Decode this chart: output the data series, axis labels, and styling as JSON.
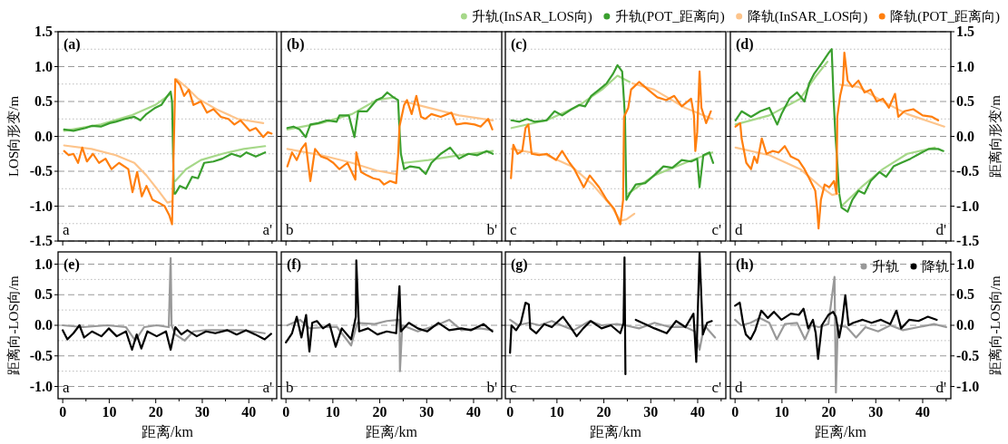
{
  "chart_data": [
    {
      "type": "line",
      "title": "(a)",
      "ylabel": "LOS向形变/m",
      "tick_labels": "y",
      "grid": "y",
      "line_style": "solid",
      "xlim": [
        -1,
        46
      ],
      "xticks": [
        0,
        {
          "value": 5,
          "label": null
        },
        10,
        {
          "value": 15,
          "label": null
        },
        20,
        {
          "value": 25,
          "label": null
        },
        30,
        {
          "value": 35,
          "label": null
        },
        40,
        {
          "value": 45,
          "label": null
        }
      ],
      "ylim": [
        -1.5,
        1.5
      ],
      "yticks": [
        {
          "value": 1.5,
          "label": "1.5"
        },
        {
          "value": 1,
          "label": "1.0"
        },
        {
          "value": 0.5,
          "label": "0.5"
        },
        {
          "value": 0,
          "label": "0.0"
        },
        {
          "value": -0.5,
          "label": "-0.5"
        },
        {
          "value": -1,
          "label": "-1.0"
        },
        {
          "value": -1.5,
          "label": "-1.5"
        }
      ],
      "annotations": [
        "a",
        "a'"
      ],
      "series": [
        {
          "color": "#a6d889",
          "x": [
            0.3,
            8.2,
            14.7,
            19.9,
            23.2
          ],
          "values": [
            0.08,
            0.17,
            0.3,
            0.45,
            0.61
          ]
        },
        {
          "color": "#a6d889",
          "x": [
            24.2,
            26.5,
            29.7,
            34.3,
            38.9,
            43.5
          ],
          "values": [
            -0.64,
            -0.47,
            -0.34,
            -0.25,
            -0.18,
            -0.14
          ]
        },
        {
          "color": "#3a9f2e",
          "x": [
            0.3,
            2.3,
            4.9,
            6.2,
            8.2,
            10.1,
            11.4,
            13.4,
            15.4,
            16.7,
            18,
            19.9,
            21.2,
            22.5,
            23.2,
            23.5,
            23.7,
            23.9,
            24.2,
            25.2,
            26.5,
            27.8,
            29.1,
            30.4,
            32.4,
            34.3,
            36.3,
            38.2,
            39.5,
            41.5,
            43.5
          ],
          "values": [
            0.1,
            0.08,
            0.12,
            0.15,
            0.14,
            0.19,
            0.21,
            0.25,
            0.28,
            0.23,
            0.32,
            0.41,
            0.45,
            0.58,
            0.64,
            0.5,
            -0.16,
            -0.82,
            -0.82,
            -0.71,
            -0.75,
            -0.58,
            -0.6,
            -0.38,
            -0.36,
            -0.32,
            -0.25,
            -0.29,
            -0.23,
            -0.29,
            -0.23
          ]
        },
        {
          "color": "#fdc48b",
          "x": [
            0.3,
            6.2,
            11.4,
            15.4,
            18,
            20.6,
            22.5,
            23.5
          ],
          "values": [
            -0.13,
            -0.18,
            -0.27,
            -0.38,
            -0.56,
            -0.78,
            -0.95,
            -0.93
          ]
        },
        {
          "color": "#fdc48b",
          "x": [
            24.5,
            26.5,
            29.1,
            33,
            37.6,
            43.1
          ],
          "values": [
            0.82,
            0.71,
            0.54,
            0.39,
            0.25,
            0.19
          ]
        },
        {
          "color": "#ff7f0e",
          "x": [
            0.3,
            1.3,
            2.3,
            3.3,
            4.2,
            5.2,
            6.5,
            7.8,
            9.2,
            10.5,
            12.1,
            14.1,
            15,
            16,
            17,
            18,
            19.3,
            20.6,
            21.9,
            22.9,
            23.5,
            24.2,
            25.2,
            26.1,
            27.1,
            28.1,
            29.7,
            31,
            32.4,
            34,
            35.6,
            36.9,
            38.2,
            40.2,
            41.5,
            43.1,
            44.1,
            44.9
          ],
          "values": [
            -0.21,
            -0.27,
            -0.25,
            -0.38,
            -0.16,
            -0.36,
            -0.25,
            -0.38,
            -0.32,
            -0.47,
            -0.38,
            -0.47,
            -0.8,
            -0.51,
            -0.86,
            -0.71,
            -0.91,
            -0.95,
            -1.0,
            -1.13,
            -1.26,
            0.82,
            0.74,
            0.58,
            0.67,
            0.45,
            0.5,
            0.34,
            0.39,
            0.28,
            0.25,
            0.17,
            0.23,
            0.08,
            0.12,
            -0.01,
            0.06,
            0.04
          ]
        }
      ]
    },
    {
      "type": "line",
      "title": "(b)",
      "tick_labels": false,
      "grid": "y",
      "line_style": "solid",
      "xlim": [
        -1,
        46
      ],
      "xticks": [
        0,
        {
          "value": 5,
          "label": null
        },
        10,
        {
          "value": 15,
          "label": null
        },
        20,
        {
          "value": 25,
          "label": null
        },
        30,
        {
          "value": 35,
          "label": null
        },
        40,
        {
          "value": 45,
          "label": null
        }
      ],
      "ylim": [
        -1.5,
        1.5
      ],
      "yticks": [
        1.5,
        1,
        0.5,
        0,
        -0.5,
        -1,
        -1.5
      ],
      "annotations": [
        "b",
        "b'"
      ],
      "series": [
        {
          "color": "#a6d889",
          "x": [
            0.3,
            7.5,
            14.1,
            19.3,
            23.2
          ],
          "values": [
            0.1,
            0.19,
            0.32,
            0.52,
            0.56
          ]
        },
        {
          "color": "#a6d889",
          "x": [
            25.2,
            30.4,
            36.9,
            44.1
          ],
          "values": [
            -0.38,
            -0.34,
            -0.27,
            -0.21
          ]
        },
        {
          "color": "#3a9f2e",
          "x": [
            0.3,
            1.6,
            2.9,
            4.2,
            5.2,
            6.9,
            8.8,
            10.8,
            11.4,
            13.4,
            14.6,
            15.4,
            17.3,
            19.3,
            20.6,
            21.6,
            22.9,
            23.9,
            24.2,
            24.5,
            25.2,
            26.5,
            28.4,
            29.8,
            31,
            33,
            35,
            36.9,
            38.9,
            40.8,
            42.8,
            44.1
          ],
          "values": [
            0.12,
            0.14,
            0.1,
            -0.01,
            0.17,
            0.19,
            0.23,
            0.21,
            0.3,
            0.3,
            -0.01,
            0.36,
            0.36,
            0.52,
            0.56,
            0.63,
            0.56,
            0.52,
            0.1,
            -0.25,
            -0.47,
            -0.43,
            -0.45,
            -0.54,
            -0.38,
            -0.25,
            -0.16,
            -0.32,
            -0.25,
            -0.27,
            -0.21,
            -0.25
          ]
        },
        {
          "color": "#fdc48b",
          "x": [
            0.3,
            7.5,
            14.1,
            19.3,
            23.5
          ],
          "values": [
            -0.18,
            -0.27,
            -0.38,
            -0.49,
            -0.54
          ]
        },
        {
          "color": "#fdc48b",
          "x": [
            25.2,
            30.4,
            36.9,
            44.1
          ],
          "values": [
            0.5,
            0.41,
            0.3,
            0.23
          ]
        },
        {
          "color": "#ff7f0e",
          "x": [
            0.3,
            1.3,
            2.3,
            3.3,
            4.2,
            5.2,
            6.2,
            7.5,
            8.8,
            10.1,
            11.4,
            13.1,
            14.8,
            15,
            16,
            17.3,
            18.6,
            19.9,
            20.9,
            22.2,
            23.5,
            23.9,
            24.2,
            25.2,
            25.8,
            26.8,
            27.8,
            28.8,
            29.7,
            31,
            33,
            35.3,
            36.3,
            38.2,
            40.2,
            41.5,
            43.1,
            44
          ],
          "values": [
            -0.43,
            -0.23,
            -0.34,
            -0.18,
            -0.1,
            -0.64,
            -0.18,
            -0.29,
            -0.32,
            -0.38,
            -0.47,
            -0.38,
            -0.62,
            -0.23,
            -0.51,
            -0.56,
            -0.6,
            -0.62,
            -0.69,
            -0.64,
            -0.67,
            -0.29,
            0.14,
            0.45,
            0.52,
            0.32,
            0.58,
            0.28,
            0.25,
            0.32,
            0.28,
            0.34,
            0.17,
            0.19,
            0.17,
            0.14,
            0.25,
            0.1
          ]
        }
      ]
    },
    {
      "type": "line",
      "title": "(c)",
      "tick_labels": false,
      "grid": "y",
      "line_style": "solid",
      "xlim": [
        -1,
        46
      ],
      "xticks": [
        0,
        {
          "value": 5,
          "label": null
        },
        10,
        {
          "value": 15,
          "label": null
        },
        20,
        {
          "value": 25,
          "label": null
        },
        30,
        {
          "value": 35,
          "label": null
        },
        40,
        {
          "value": 45,
          "label": null
        }
      ],
      "ylim": [
        -1.5,
        1.5
      ],
      "yticks": [
        1.5,
        1,
        0.5,
        0,
        -0.5,
        -1,
        -1.5
      ],
      "annotations": [
        "c",
        "c'"
      ],
      "series": [
        {
          "color": "#a6d889",
          "x": [
            0.3,
            7.8,
            14.4,
            19.6,
            22.9,
            25.5
          ],
          "values": [
            0.12,
            0.23,
            0.43,
            0.67,
            0.87,
            0.78
          ]
        },
        {
          "color": "#a6d889",
          "x": [
            25.2,
            30.7,
            37.3,
            43.1
          ],
          "values": [
            -0.82,
            -0.56,
            -0.38,
            -0.23
          ]
        },
        {
          "color": "#3a9f2e",
          "x": [
            0.3,
            2,
            3.6,
            5.2,
            7.8,
            9.5,
            11.1,
            13.1,
            14.7,
            16,
            17.3,
            19,
            20.6,
            21.9,
            22.9,
            23.9,
            24.5,
            24.8,
            25.5,
            26.8,
            28.8,
            30.7,
            32.7,
            34.6,
            36.6,
            38.6,
            39.9,
            40.4,
            41.2,
            42.5,
            43.3
          ],
          "values": [
            0.23,
            0.21,
            0.25,
            0.21,
            0.23,
            0.36,
            0.3,
            0.39,
            0.45,
            0.43,
            0.58,
            0.67,
            0.76,
            0.89,
            1.02,
            0.93,
            0.28,
            -0.91,
            -0.82,
            -0.69,
            -0.67,
            -0.56,
            -0.43,
            -0.45,
            -0.34,
            -0.36,
            -0.32,
            -0.73,
            -0.27,
            -0.23,
            -0.38
          ]
        },
        {
          "color": "#fdc48b",
          "x": [
            0.3,
            7.8,
            13.1,
            17.6,
            21.6,
            23.5,
            24.8,
            26.5
          ],
          "values": [
            -0.18,
            -0.27,
            -0.43,
            -0.69,
            -1.0,
            -1.21,
            -1.19,
            -1.11
          ]
        },
        {
          "color": "#fdc48b",
          "x": [
            26.1,
            30.7,
            37.3,
            43.1
          ],
          "values": [
            0.76,
            0.67,
            0.41,
            0.25
          ]
        },
        {
          "color": "#ff7f0e",
          "x": [
            0.2,
            0.7,
            1.6,
            2.6,
            3.3,
            3.9,
            4.6,
            6.2,
            7.8,
            9.8,
            11.1,
            12.7,
            13.7,
            15.7,
            17,
            19,
            20.6,
            22.2,
            23.5,
            24.1,
            24.3,
            25.2,
            25.8,
            27.5,
            29.4,
            31.4,
            33.3,
            35,
            36.6,
            38.6,
            39.2,
            39.5,
            39.9,
            40.4,
            40.8,
            41.8,
            42.8
          ],
          "values": [
            -0.6,
            -0.12,
            -0.25,
            -0.21,
            0.12,
            0.17,
            -0.25,
            -0.27,
            -0.25,
            -0.34,
            -0.21,
            -0.38,
            -0.47,
            -0.73,
            -0.56,
            -0.73,
            -0.91,
            -1.04,
            -1.26,
            -0.91,
            0.28,
            0.41,
            0.67,
            0.78,
            0.67,
            0.56,
            0.52,
            0.58,
            0.43,
            0.54,
            0.3,
            -0.21,
            0.06,
            0.93,
            0.41,
            0.19,
            0.36
          ]
        }
      ]
    },
    {
      "type": "line",
      "title": "(d)",
      "y2label": "距离向形变/m",
      "tick_labels": false,
      "grid": "y",
      "line_style": "solid",
      "legend": "top",
      "xlim": [
        -1,
        46
      ],
      "xticks": [
        0,
        {
          "value": 5,
          "label": null
        },
        10,
        {
          "value": 15,
          "label": null
        },
        20,
        {
          "value": 25,
          "label": null
        },
        30,
        {
          "value": 35,
          "label": null
        },
        40,
        {
          "value": 45,
          "label": null
        }
      ],
      "y2lim": [
        -1.5,
        1.5
      ],
      "y2ticks": [
        {
          "value": 1.5,
          "label": "1.5"
        },
        {
          "value": 1,
          "label": "1.0"
        },
        {
          "value": 0.5,
          "label": "0.5"
        },
        {
          "value": 0,
          "label": "0.0"
        },
        {
          "value": -0.5,
          "label": "-0.5"
        },
        {
          "value": -1,
          "label": "-1.0"
        },
        {
          "value": -1.5,
          "label": "-1.5"
        }
      ],
      "annotations": [
        "d",
        "d'"
      ],
      "series": [
        {
          "name": "升轨(InSAR_LOS向)",
          "axis": "y2",
          "color": "#a6d889",
          "x": [
            0.1,
            7.3,
            13.9,
            17.1,
            19.7
          ],
          "values": [
            0.17,
            0.3,
            0.54,
            0.85,
            1.07
          ]
        },
        {
          "axis": "y2",
          "color": "#a6d889",
          "x": [
            22.7,
            26.9,
            31.5,
            36.7,
            42.6
          ],
          "values": [
            -1.0,
            -0.73,
            -0.47,
            -0.25,
            -0.16
          ]
        },
        {
          "name": "升轨(POT_距离向)",
          "axis": "y2",
          "color": "#3a9f2e",
          "x": [
            0.1,
            1.4,
            3.4,
            5.4,
            7.3,
            9,
            9.9,
            11.6,
            13.2,
            14.8,
            15.8,
            16.8,
            18.5,
            20,
            20.6,
            21,
            21.4,
            21.8,
            22.2,
            22.7,
            24,
            25,
            26.3,
            27.6,
            28.9,
            30.8,
            32.2,
            33.8,
            35.4,
            37.4,
            39.3,
            41.3,
            43.3,
            44.4
          ],
          "values": [
            0.23,
            0.36,
            0.28,
            0.36,
            0.41,
            0.17,
            0.32,
            0.54,
            0.63,
            0.5,
            0.76,
            0.89,
            1.05,
            1.2,
            1.25,
            0.55,
            0.01,
            -0.38,
            -0.82,
            -1.02,
            -1.08,
            -0.91,
            -0.78,
            -0.82,
            -0.64,
            -0.51,
            -0.58,
            -0.43,
            -0.38,
            -0.32,
            -0.25,
            -0.18,
            -0.18,
            -0.21
          ]
        },
        {
          "name": "降轨(InSAR_LOS向)",
          "axis": "y2",
          "color": "#fdc48b",
          "x": [
            0.1,
            7.3,
            13.9,
            18.4,
            20.7,
            22
          ],
          "values": [
            -0.16,
            -0.27,
            -0.47,
            -0.73,
            -0.84,
            -0.82
          ]
        },
        {
          "axis": "y2",
          "color": "#fdc48b",
          "x": [
            22.4,
            26.3,
            31.5,
            36.7,
            44.6
          ],
          "values": [
            0.74,
            0.71,
            0.5,
            0.32,
            0.14
          ]
        },
        {
          "name": "降轨(POT_距离向)",
          "axis": "y2",
          "color": "#ff7f0e",
          "x": [
            0.1,
            1.1,
            1.4,
            2.4,
            3.4,
            4.1,
            4.7,
            5.7,
            6.7,
            8,
            9.3,
            10.6,
            11.9,
            13.5,
            14.8,
            15.8,
            17.1,
            17.5,
            17.8,
            18.3,
            19.1,
            20.1,
            21.1,
            21.6,
            21.8,
            22.4,
            23,
            23.3,
            24,
            25,
            26.3,
            27.6,
            28.9,
            30.2,
            31.5,
            32.8,
            34.1,
            34.8,
            36.1,
            38,
            40,
            42,
            43.3
          ],
          "values": [
            0.14,
            0.19,
            -0.03,
            -0.38,
            -0.47,
            -0.29,
            -0.38,
            -0.03,
            -0.25,
            -0.21,
            -0.23,
            -0.14,
            -0.29,
            -0.34,
            -0.47,
            -0.6,
            -0.78,
            -1.04,
            -1.32,
            -0.91,
            -0.69,
            -0.73,
            -0.64,
            -0.82,
            0.28,
            0.58,
            0.76,
            1.2,
            0.8,
            0.71,
            0.8,
            0.63,
            0.67,
            0.5,
            0.54,
            0.41,
            0.61,
            0.28,
            0.36,
            0.39,
            0.3,
            0.28,
            0.23
          ]
        }
      ]
    },
    {
      "type": "line",
      "title": "(e)",
      "xlabel": "距离/km",
      "ylabel": "距离向-LOS向/m",
      "grid": "y",
      "line_style": "solid",
      "xlim": [
        -1,
        46
      ],
      "xticks": [
        0,
        {
          "value": 5,
          "label": null
        },
        10,
        {
          "value": 15,
          "label": null
        },
        20,
        {
          "value": 25,
          "label": null
        },
        30,
        {
          "value": 35,
          "label": null
        },
        40,
        {
          "value": 45,
          "label": null
        }
      ],
      "ylim": [
        -1.2,
        1.2
      ],
      "yticks": [
        {
          "value": 1,
          "label": "1.0"
        },
        {
          "value": 0.5,
          "label": "0.5"
        },
        {
          "value": 0,
          "label": "0.0"
        },
        {
          "value": -0.5,
          "label": "-0.5"
        },
        {
          "value": -1,
          "label": "-1.0"
        }
      ],
      "annotations": [
        "a",
        "a'"
      ],
      "series": [
        {
          "color": "#999999",
          "x": [
            0,
            4.3,
            9.6,
            13.6,
            15.6,
            17.5,
            20.2,
            22.8,
            23.2,
            23.4,
            24.2,
            26.2,
            28.1,
            30.8,
            34.8,
            38.7,
            43.4
          ],
          "values": [
            0,
            -0.03,
            0,
            -0.03,
            -0.25,
            -0.03,
            0,
            -0.03,
            1.1,
            0,
            -0.15,
            -0.25,
            -0.1,
            -0.08,
            -0.08,
            -0.08,
            -0.13
          ]
        },
        {
          "color": "#000000",
          "x": [
            0,
            1,
            2.3,
            3.6,
            4.6,
            6.3,
            8.3,
            9.9,
            11.6,
            13.6,
            14.9,
            15.9,
            16.9,
            18.2,
            20.2,
            22.2,
            23.2,
            24.2,
            25.5,
            26.8,
            28.8,
            30.8,
            32.8,
            35.4,
            37.4,
            39.4,
            41.4,
            43.4,
            44.8
          ],
          "values": [
            -0.08,
            -0.23,
            -0.13,
            0,
            -0.2,
            -0.1,
            -0.18,
            -0.05,
            -0.18,
            -0.1,
            -0.4,
            -0.15,
            -0.38,
            -0.1,
            -0.18,
            -0.1,
            -0.4,
            -0.03,
            -0.15,
            -0.08,
            -0.18,
            -0.1,
            -0.13,
            -0.08,
            -0.15,
            -0.08,
            -0.15,
            -0.23,
            -0.14
          ]
        }
      ]
    },
    {
      "type": "line",
      "title": "(f)",
      "xlabel": "距离/km",
      "tick_labels": "x",
      "grid": "y",
      "line_style": "solid",
      "xlim": [
        -1,
        46
      ],
      "xticks": [
        0,
        {
          "value": 5,
          "label": null
        },
        10,
        {
          "value": 15,
          "label": null
        },
        20,
        {
          "value": 25,
          "label": null
        },
        30,
        {
          "value": 35,
          "label": null
        },
        40,
        {
          "value": 45,
          "label": null
        }
      ],
      "ylim": [
        -1.2,
        1.2
      ],
      "yticks": [
        1,
        0.5,
        0,
        -0.5,
        -1
      ],
      "annotations": [
        "b",
        "b'"
      ],
      "series": [
        {
          "color": "#999999",
          "x": [
            0.3,
            3,
            5,
            8.3,
            10.9,
            13.9,
            15.2,
            18.9,
            21.5,
            24.2,
            24.3,
            24.8,
            28.1,
            32.1,
            34.8,
            37.4,
            41.4,
            44
          ],
          "values": [
            0,
            0.09,
            -0.05,
            -0.03,
            -0.03,
            -0.33,
            0.04,
            0.02,
            0.07,
            0.09,
            -0.75,
            0,
            -0.1,
            0,
            0.09,
            -0.08,
            -0.05,
            -0.08
          ]
        },
        {
          "color": "#000000",
          "x": [
            0,
            1.3,
            2.3,
            3.3,
            4.3,
            5,
            5.6,
            6.6,
            7.9,
            9.3,
            10.6,
            11.9,
            13.9,
            14.9,
            15,
            15.6,
            17.5,
            19.5,
            21.5,
            23.5,
            24.2,
            24.5,
            26.2,
            28.1,
            30.1,
            32.5,
            34.8,
            37.4,
            39.4,
            42.1,
            44
          ],
          "values": [
            -0.28,
            -0.13,
            0.14,
            -0.2,
            0.17,
            -0.43,
            0.04,
            0.07,
            -0.05,
            0.02,
            -0.35,
            -0.05,
            -0.23,
            0.14,
            1.06,
            -0.1,
            -0.05,
            -0.15,
            -0.1,
            -0.13,
            0.64,
            -0.1,
            0.04,
            -0.05,
            -0.1,
            0.04,
            -0.08,
            -0.05,
            -0.08,
            0.02,
            -0.1
          ]
        }
      ]
    },
    {
      "type": "line",
      "title": "(g)",
      "xlabel": "距离/km",
      "tick_labels": "x",
      "grid": "y",
      "line_style": "solid",
      "xlim": [
        -1,
        46
      ],
      "xticks": [
        0,
        {
          "value": 5,
          "label": null
        },
        10,
        {
          "value": 15,
          "label": null
        },
        20,
        {
          "value": 25,
          "label": null
        },
        30,
        {
          "value": 35,
          "label": null
        },
        40,
        {
          "value": 45,
          "label": null
        }
      ],
      "ylim": [
        -1.2,
        1.2
      ],
      "yticks": [
        1,
        0.5,
        0,
        -0.5,
        -1
      ],
      "annotations": [
        "c",
        "c'"
      ],
      "series": [
        {
          "color": "#999999",
          "x": [
            0,
            1.7,
            4,
            6.3,
            8.9,
            10.9,
            13.6,
            17,
            19.5,
            22.8,
            24.5,
            27.5,
            30.8,
            34.1,
            37.4,
            39.4,
            40.4,
            41.4,
            43.7
          ],
          "values": [
            0.09,
            0,
            0.04,
            0,
            0.07,
            0,
            -0.08,
            0.07,
            0,
            0.02,
            0,
            -0.05,
            0.04,
            -0.03,
            -0.03,
            -0.1,
            -0.4,
            0,
            -0.2
          ]
        },
        {
          "color": "#000000",
          "x": [
            0,
            0.3,
            1.3,
            2.3,
            3.3,
            4,
            4.3,
            5.6,
            7.3,
            8.9,
            11.3,
            12.9,
            14.2,
            15.6,
            17.2,
            19.5,
            21.5,
            23.5,
            24.2,
            24.4,
            24.6
          ],
          "values": [
            -0.45,
            0,
            -0.08,
            0.04,
            0.37,
            0.34,
            -0.05,
            -0.13,
            0.02,
            -0.03,
            0.14,
            -0.03,
            -0.18,
            -0.05,
            0.07,
            -0.05,
            0,
            -0.13,
            0.04,
            1.11,
            -0.8
          ]
        },
        {
          "color": "#000000",
          "x": [
            26.8,
            28.8,
            30.8,
            33.4,
            35.4,
            37.4,
            39.1,
            39.7,
            40.4,
            41.1,
            42,
            43
          ],
          "values": [
            0.09,
            0.02,
            -0.05,
            -0.13,
            0.07,
            -0.03,
            0.19,
            -0.6,
            1.19,
            -0.15,
            0.04,
            0.07
          ]
        }
      ]
    },
    {
      "type": "line",
      "title": "(h)",
      "xlabel": "距离/km",
      "y2label": "距离向-LOS向/m",
      "tick_labels": "x",
      "grid": "y",
      "line_style": "solid",
      "legend": "top right",
      "xlim": [
        -1,
        46
      ],
      "xticks": [
        0,
        {
          "value": 5,
          "label": null
        },
        10,
        {
          "value": 15,
          "label": null
        },
        20,
        {
          "value": 25,
          "label": null
        },
        30,
        {
          "value": 35,
          "label": null
        },
        40,
        {
          "value": 45,
          "label": null
        }
      ],
      "y2lim": [
        -1.2,
        1.2
      ],
      "y2ticks": [
        {
          "value": 1,
          "label": "1.0"
        },
        {
          "value": 0.5,
          "label": "0.5"
        },
        {
          "value": 0,
          "label": "0.0"
        },
        {
          "value": -0.5,
          "label": "-0.5"
        },
        {
          "value": -1,
          "label": "-1.0"
        }
      ],
      "annotations": [
        "d",
        "d'"
      ],
      "series": [
        {
          "name": "升轨",
          "axis": "y2",
          "color": "#999999",
          "x": [
            0,
            1.3,
            3.3,
            5.3,
            7.3,
            8.9,
            10.6,
            13.2,
            14.9,
            16.2,
            17.9,
            19.9,
            21.2,
            21.5,
            21.9,
            23.8,
            25.8,
            27.8,
            30.5,
            33.1,
            35.8,
            39.1,
            42.4,
            45
          ],
          "values": [
            0.09,
            0,
            0.04,
            0.12,
            0.04,
            -0.23,
            0.02,
            0.04,
            -0.23,
            0,
            -0.03,
            0.02,
            0.79,
            -1.1,
            0,
            -0.03,
            -0.2,
            -0.03,
            -0.1,
            0,
            -0.08,
            -0.03,
            0.02,
            -0.03
          ]
        },
        {
          "name": "降轨",
          "axis": "y2",
          "color": "#000000",
          "x": [
            0,
            1,
            1.7,
            2.3,
            3.3,
            4.3,
            5.6,
            7,
            8.3,
            9.9,
            11.9,
            13.6,
            14.6,
            15.6,
            16.6,
            17.2,
            17.7,
            18.5,
            19.9,
            20.9,
            21.5,
            22.2,
            22.8,
            23.5,
            24.2,
            25.2,
            27.2,
            29.1,
            31.1,
            33.1,
            34.4,
            35.4,
            37.1,
            39.1,
            41.1,
            43
          ],
          "values": [
            0.32,
            0.37,
            0.04,
            -0.15,
            -0.23,
            -0.08,
            0.24,
            0.12,
            0.22,
            0.09,
            0.19,
            0.17,
            0.27,
            -0.05,
            0.09,
            -0.13,
            -0.55,
            0,
            0.17,
            0.22,
            0.14,
            -0.2,
            0.04,
            0.49,
            0,
            0.04,
            0.09,
            0.04,
            0.09,
            0.02,
            0.24,
            -0.05,
            0.09,
            0.07,
            0.14,
            0.09
          ]
        }
      ]
    }
  ]
}
